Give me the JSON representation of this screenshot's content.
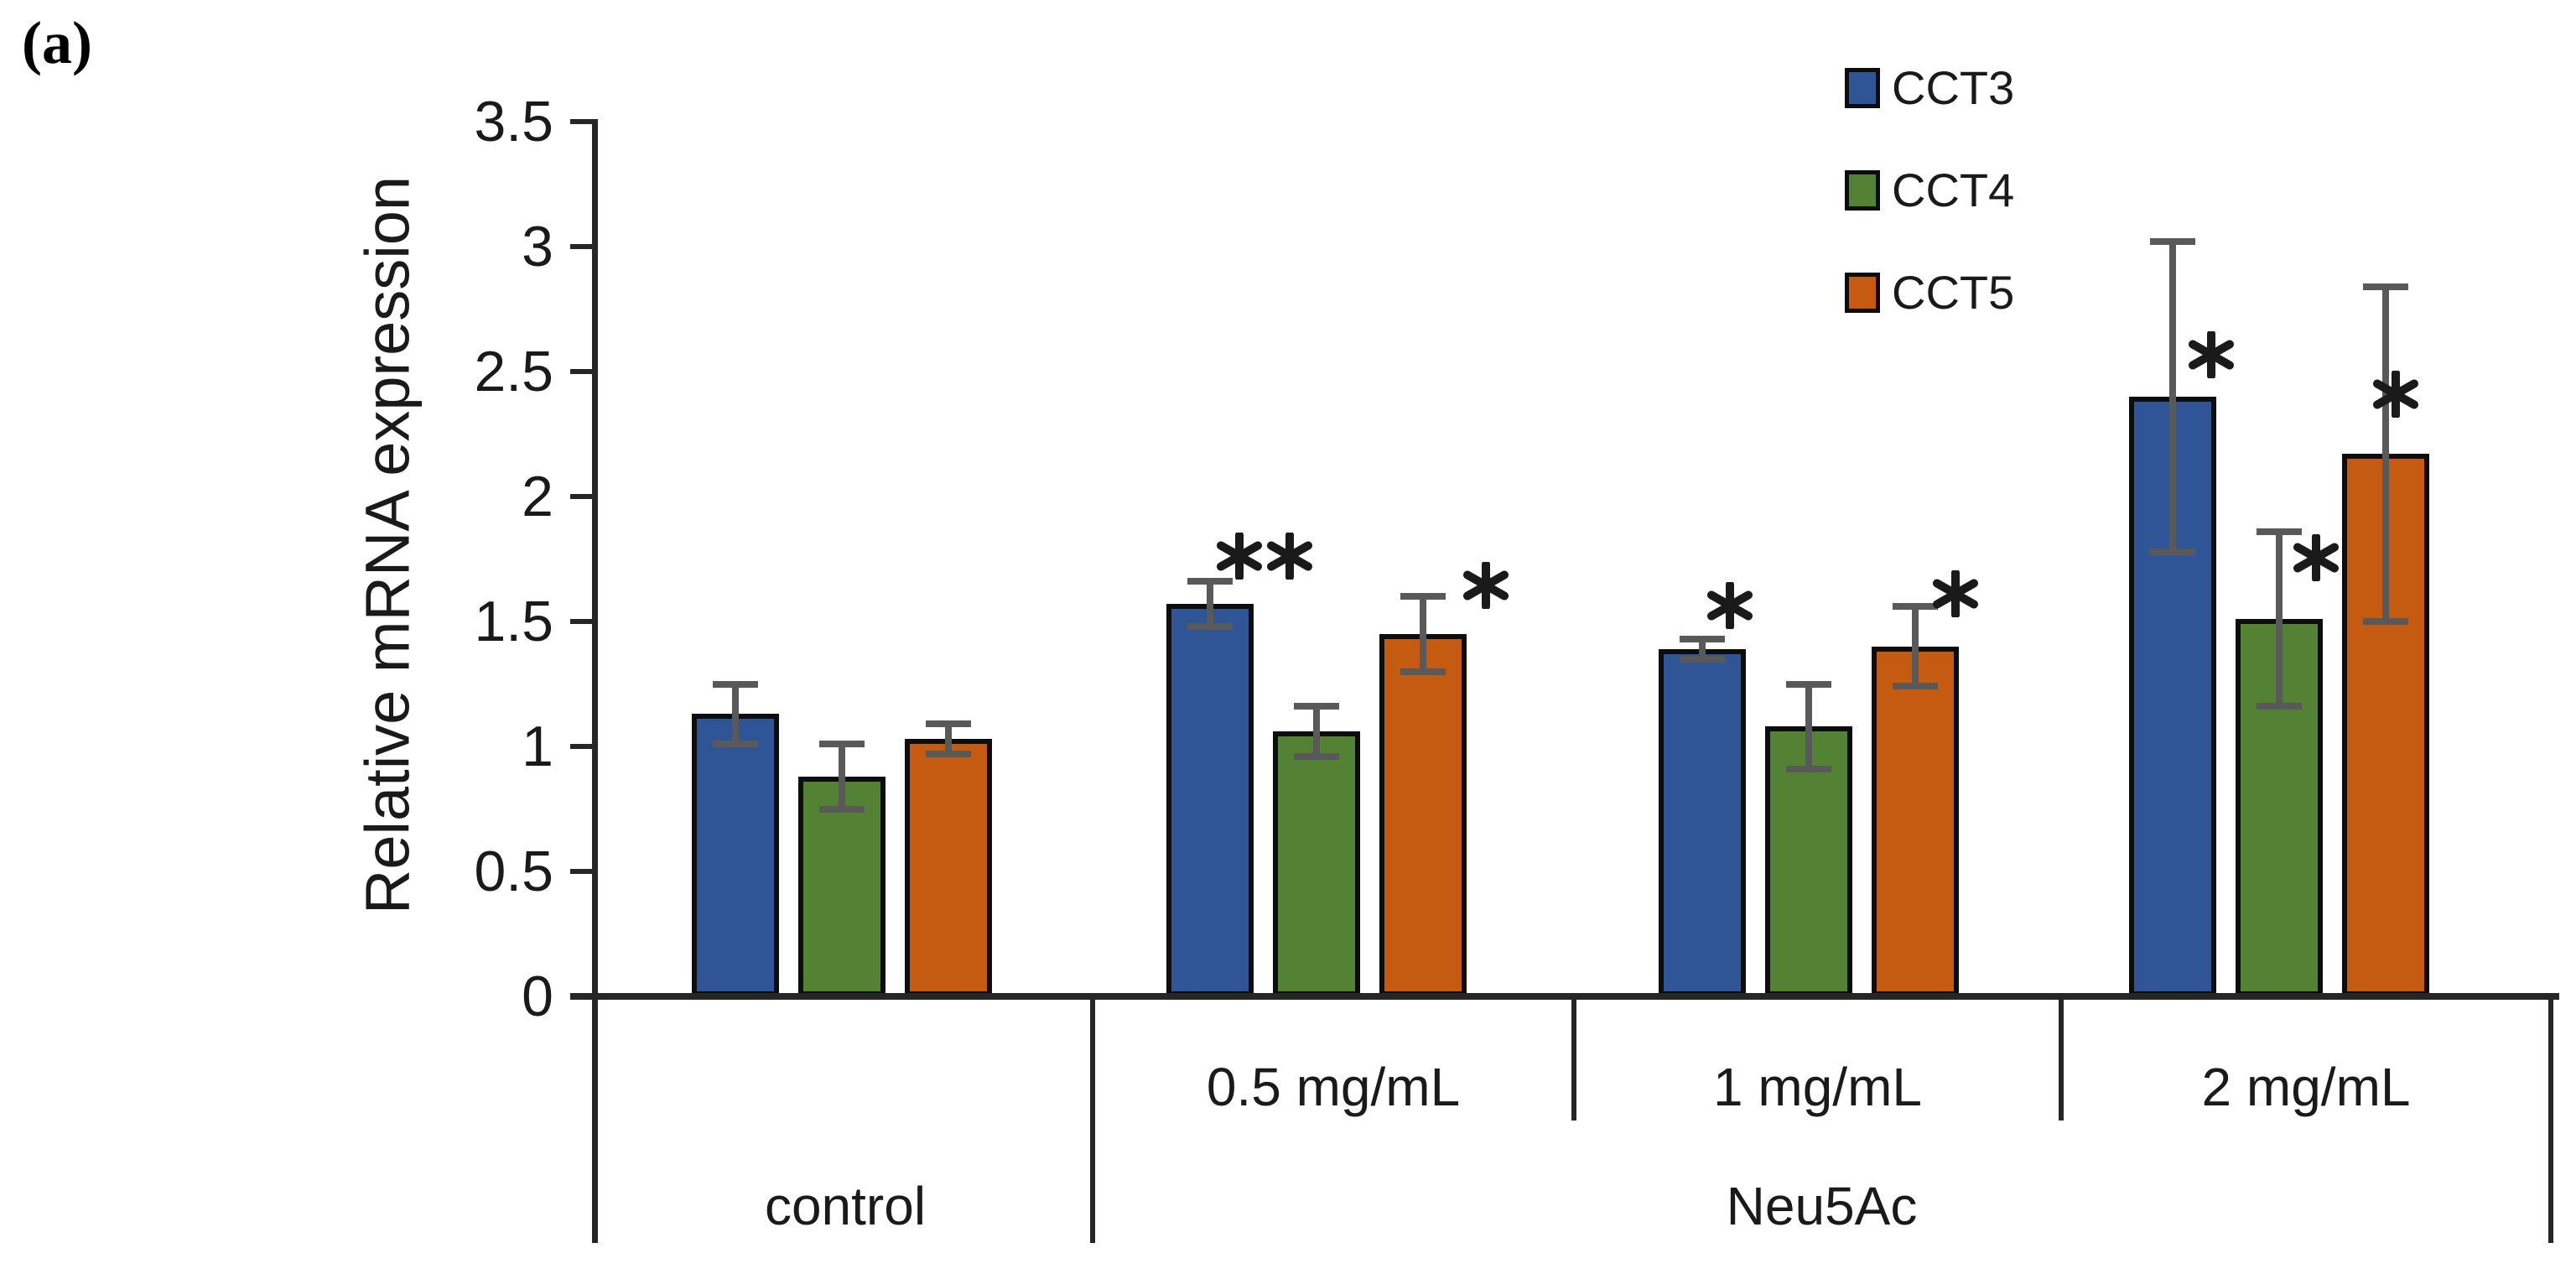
{
  "panel_label": "(a)",
  "colors": {
    "cct3_blue": "#2F5596",
    "cct4_green": "#548235",
    "cct5_orange": "#C55A11",
    "error_bar_gray": "#595959",
    "axis": "#262626",
    "text": "#1a1a1a"
  },
  "legend": {
    "items": [
      {
        "label": "CCT3",
        "color": "#2F5596"
      },
      {
        "label": "CCT4",
        "color": "#548235"
      },
      {
        "label": "CCT5",
        "color": "#C55A11"
      }
    ],
    "position": "top-right"
  },
  "chart_data": {
    "type": "bar",
    "title": "",
    "ylabel": "Relative mRNA expression",
    "xlabel": "",
    "ylim": [
      0,
      3.5
    ],
    "ytick_values": [
      0,
      0.5,
      1,
      1.5,
      2,
      2.5,
      3,
      3.5
    ],
    "ytick_labels": [
      "0",
      "0.5",
      "1",
      "1.5",
      "2",
      "2.5",
      "3",
      "3.5"
    ],
    "grid": false,
    "legend_position": "top-right",
    "categories": [
      "control",
      "0.5 mg/mL",
      "1 mg/mL",
      "2 mg/mL"
    ],
    "category_axis": {
      "level1_labels": [
        "",
        "0.5 mg/mL",
        "1 mg/mL",
        "2 mg/mL"
      ],
      "level2_labels": [
        {
          "label": "control",
          "groups": [
            0
          ]
        },
        {
          "label": "Neu5Ac",
          "groups": [
            1,
            2,
            3
          ]
        }
      ]
    },
    "series": [
      {
        "name": "CCT3",
        "color": "#2F5596",
        "values": [
          1.13,
          1.57,
          1.39,
          2.4
        ],
        "errors": [
          0.12,
          0.09,
          0.04,
          0.62
        ],
        "significance": [
          "",
          "**",
          "*",
          "*"
        ]
      },
      {
        "name": "CCT4",
        "color": "#548235",
        "values": [
          0.88,
          1.06,
          1.08,
          1.51
        ],
        "errors": [
          0.13,
          0.1,
          0.17,
          0.35
        ],
        "significance": [
          "",
          "",
          "",
          "*"
        ]
      },
      {
        "name": "CCT5",
        "color": "#C55A11",
        "values": [
          1.03,
          1.45,
          1.4,
          2.17
        ],
        "errors": [
          0.06,
          0.15,
          0.16,
          0.67
        ],
        "significance": [
          "",
          "*",
          "*",
          "*"
        ]
      }
    ]
  }
}
